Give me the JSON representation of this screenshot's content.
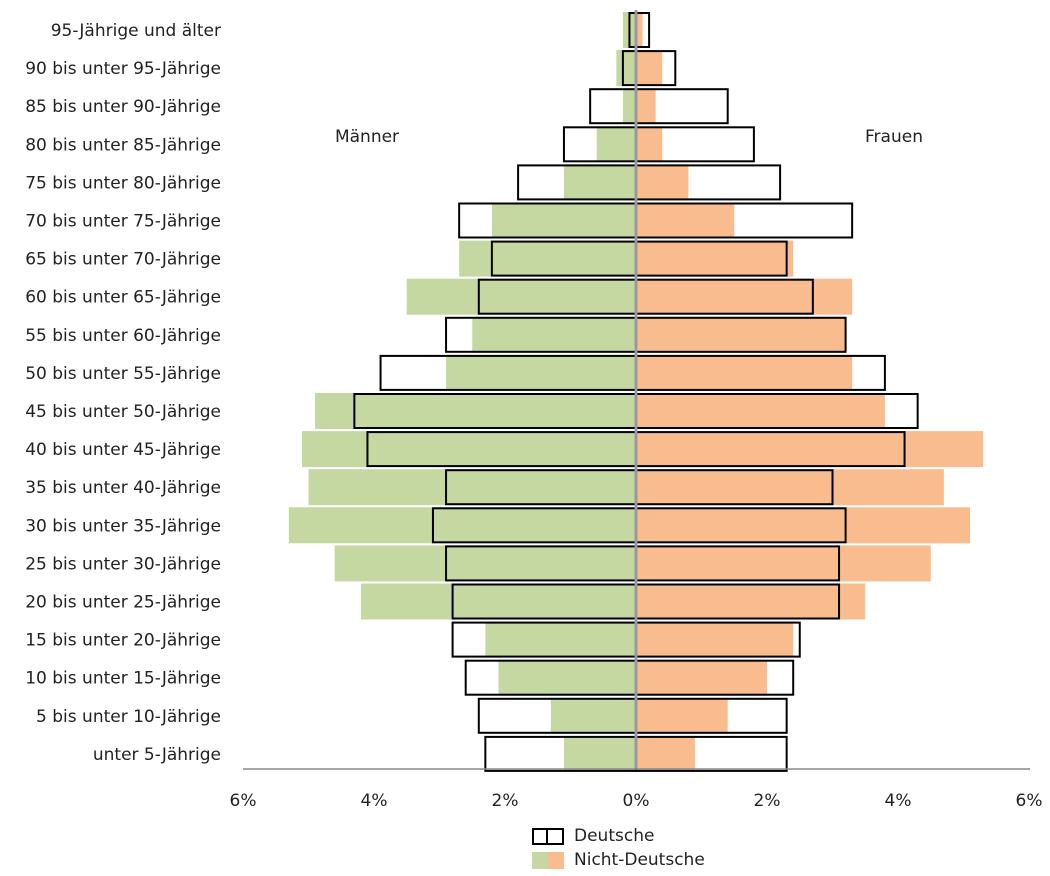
{
  "chart_data": {
    "type": "bar",
    "orientation": "horizontal",
    "categories": [
      "95-Jährige und älter",
      "90 bis unter 95-Jährige",
      "85 bis unter 90-Jährige",
      "80 bis unter 85-Jährige",
      "75 bis unter 80-Jährige",
      "70 bis unter 75-Jährige",
      "65 bis unter 70-Jährige",
      "60 bis unter 65-Jährige",
      "55 bis unter 60-Jährige",
      "50 bis unter 55-Jährige",
      "45 bis unter 50-Jährige",
      "40 bis unter 45-Jährige",
      "35 bis unter 40-Jährige",
      "30 bis unter 35-Jährige",
      "25 bis unter 30-Jährige",
      "20 bis unter 25-Jährige",
      "15 bis unter 20-Jährige",
      "10 bis unter 15-Jährige",
      "5 bis unter 10-Jährige",
      "unter 5-Jährige"
    ],
    "series": [
      {
        "name": "Deutsche",
        "group": "Männer",
        "values": [
          0.1,
          0.2,
          0.7,
          1.1,
          1.8,
          2.7,
          2.2,
          2.4,
          2.9,
          3.9,
          4.3,
          4.1,
          2.9,
          3.1,
          2.9,
          2.8,
          2.8,
          2.6,
          2.4,
          2.3
        ]
      },
      {
        "name": "Nicht-Deutsche",
        "group": "Männer",
        "values": [
          0.2,
          0.3,
          0.2,
          0.6,
          1.1,
          2.2,
          2.7,
          3.5,
          2.5,
          2.9,
          4.9,
          5.1,
          5.0,
          5.3,
          4.6,
          4.2,
          2.3,
          2.1,
          1.3,
          1.1
        ]
      },
      {
        "name": "Deutsche",
        "group": "Frauen",
        "values": [
          0.2,
          0.6,
          1.4,
          1.8,
          2.2,
          3.3,
          2.3,
          2.7,
          3.2,
          3.8,
          4.3,
          4.1,
          3.0,
          3.2,
          3.1,
          3.1,
          2.5,
          2.4,
          2.3,
          2.3
        ]
      },
      {
        "name": "Nicht-Deutsche",
        "group": "Frauen",
        "values": [
          0.1,
          0.4,
          0.3,
          0.4,
          0.8,
          1.5,
          2.4,
          3.3,
          3.2,
          3.3,
          3.8,
          5.3,
          4.7,
          5.1,
          4.5,
          3.5,
          2.4,
          2.0,
          1.4,
          0.9
        ]
      }
    ],
    "xticks": [
      "6%",
      "4%",
      "2%",
      "0%",
      "2%",
      "4%",
      "6%"
    ],
    "xlim": [
      -6,
      6
    ],
    "annotations": {
      "left_group": "Männer",
      "right_group": "Frauen"
    },
    "colors": {
      "male_fill": "#c5d8a1",
      "female_fill": "#f9bc8e",
      "outline": "#000000",
      "center_line": "#999999",
      "axis_line": "#888888"
    },
    "grid": false,
    "legend_position": "bottom-center"
  },
  "legend": {
    "items": [
      {
        "label": "Deutsche"
      },
      {
        "label": "Nicht-Deutsche"
      }
    ]
  }
}
